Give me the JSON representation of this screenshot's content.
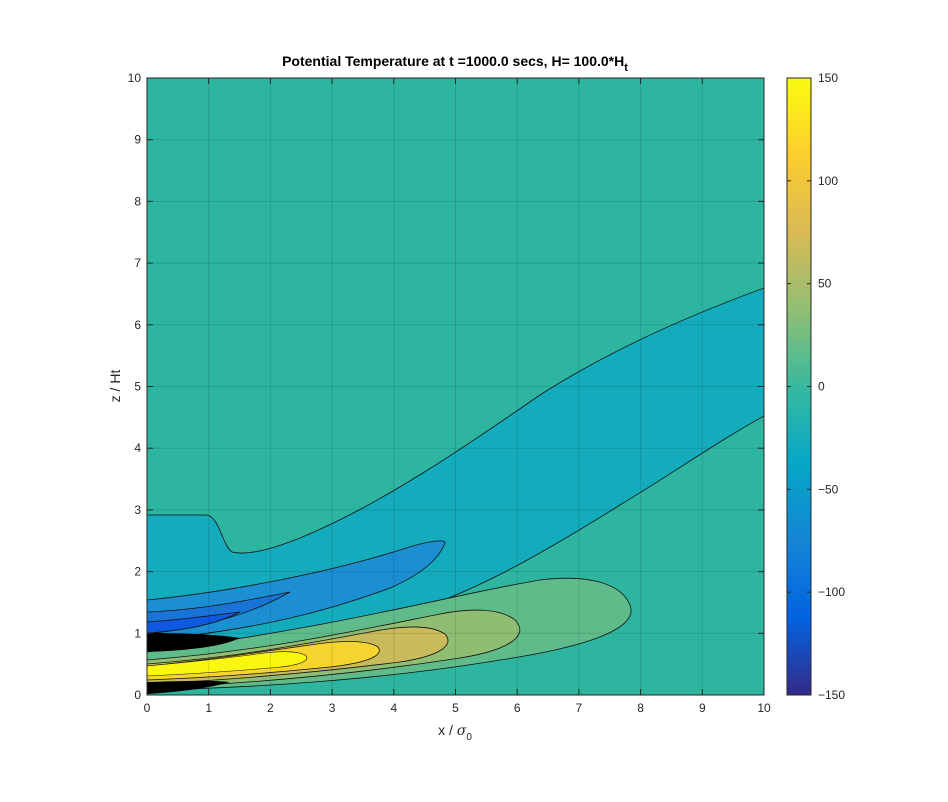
{
  "chart_data": {
    "type": "heatmap",
    "subtype": "filled-contour",
    "title": {
      "main": "Potential Temperature at t =1000.0 secs, H= 100.0*H",
      "subscript": "t"
    },
    "xlabel": {
      "main": "x / ",
      "symbol": "σ",
      "subscript": "0"
    },
    "ylabel": "z / Ht",
    "xlim": [
      0,
      10
    ],
    "ylim": [
      0,
      10
    ],
    "x_ticks": [
      "0",
      "1",
      "2",
      "3",
      "4",
      "5",
      "6",
      "7",
      "8",
      "9",
      "10"
    ],
    "y_ticks": [
      "0",
      "1",
      "2",
      "3",
      "4",
      "5",
      "6",
      "7",
      "8",
      "9",
      "10"
    ],
    "grid": true,
    "colormap": "parula",
    "colorbar": {
      "limits": [
        -150,
        150
      ],
      "ticks": [
        "150",
        "100",
        "50",
        "0",
        "−50",
        "−100",
        "−150"
      ],
      "placement": "right"
    },
    "contour_lines": "black",
    "features": [
      {
        "description": "near-zero background",
        "value": 0
      },
      {
        "description": "negative band from (0,3) curving to upper right",
        "value": -20
      },
      {
        "description": "negative lobe near x 0-4.8, z 1-2.5",
        "value": -60
      },
      {
        "description": "strong positive core near surface, x 0-4, z 0.2-0.8",
        "value": 150
      },
      {
        "description": "positive plume extending to x ≈ 7.8, z < 1.9",
        "value": 40
      }
    ]
  }
}
